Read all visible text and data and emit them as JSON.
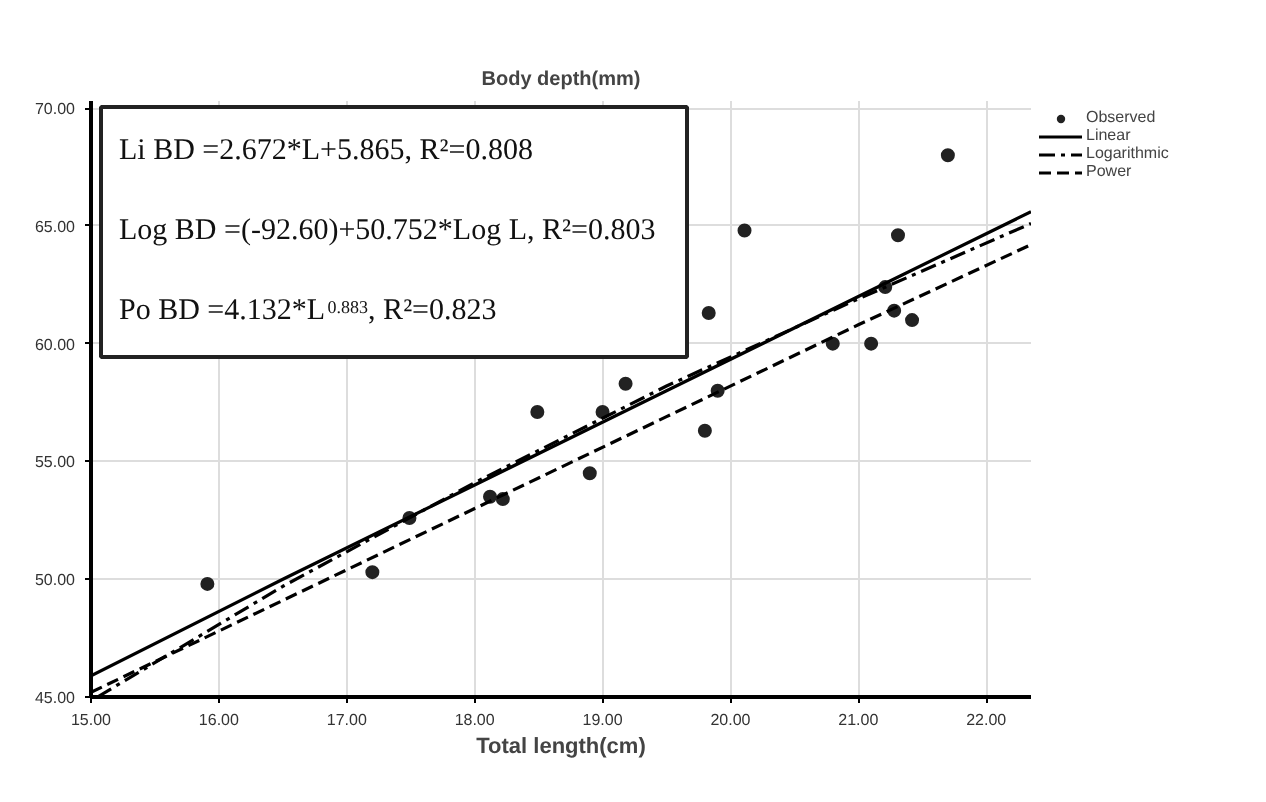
{
  "chart_data": {
    "type": "scatter",
    "title": "Body depth(mm)",
    "xlabel": "Total length(cm)",
    "xlim": [
      15,
      22.35
    ],
    "ylim": [
      45,
      70.3
    ],
    "xticks": [
      {
        "value": 15,
        "label": "15.00"
      },
      {
        "value": 16,
        "label": "16.00"
      },
      {
        "value": 17,
        "label": "17.00"
      },
      {
        "value": 18,
        "label": "18.00"
      },
      {
        "value": 19,
        "label": "19.00"
      },
      {
        "value": 20,
        "label": "20.00"
      },
      {
        "value": 21,
        "label": "21.00"
      },
      {
        "value": 22,
        "label": "22.00"
      }
    ],
    "yticks": [
      {
        "value": 45,
        "label": "45.00"
      },
      {
        "value": 50,
        "label": "50.00"
      },
      {
        "value": 55,
        "label": "55.00"
      },
      {
        "value": 60,
        "label": "60.00"
      },
      {
        "value": 65,
        "label": "65.00"
      },
      {
        "value": 70,
        "label": "70.00"
      }
    ],
    "grid": true,
    "legend": "top right",
    "series": [
      {
        "name": "Observed",
        "marker": "circle",
        "color": "#222222",
        "x": [
          15.91,
          17.2,
          17.49,
          18.12,
          18.22,
          18.49,
          18.9,
          19.0,
          19.18,
          19.83,
          19.8,
          19.9,
          20.11,
          20.8,
          21.1,
          21.21,
          21.28,
          21.31,
          21.42,
          21.7
        ],
        "values": [
          49.8,
          50.3,
          52.6,
          53.5,
          53.4,
          57.1,
          54.5,
          57.1,
          58.3,
          61.3,
          56.3,
          58.0,
          64.8,
          60.0,
          60.0,
          62.4,
          61.4,
          64.6,
          61.0,
          68.0
        ]
      },
      {
        "name": "Linear",
        "type": "line",
        "line_style": "solid",
        "color": "#000000",
        "x": [
          15,
          16.5,
          18,
          19.5,
          21,
          22.35
        ],
        "values": [
          45.9,
          50.0,
          54.0,
          58.0,
          62.0,
          65.6
        ]
      },
      {
        "name": "Logarithmic",
        "type": "line",
        "line_style": "dashdot",
        "color": "#000000",
        "x": [
          15.05,
          16.5,
          18,
          19.5,
          21,
          22.35
        ],
        "values": [
          45.0,
          49.7,
          54.1,
          58.2,
          61.9,
          65.1
        ]
      },
      {
        "name": "Power",
        "type": "line",
        "line_style": "dashed",
        "color": "#000000",
        "x": [
          15,
          16.5,
          18,
          19.5,
          21,
          22.35
        ],
        "values": [
          45.2,
          49.1,
          53.0,
          56.9,
          60.8,
          64.2
        ]
      }
    ],
    "annotations": [
      "Li BD =2.672*L+5.865, R²=0.808",
      "Log BD =(-92.60)+50.752*Log L, R²=0.803",
      "Po BD =4.132*L$^{0.883}$, R²=0.823"
    ]
  }
}
